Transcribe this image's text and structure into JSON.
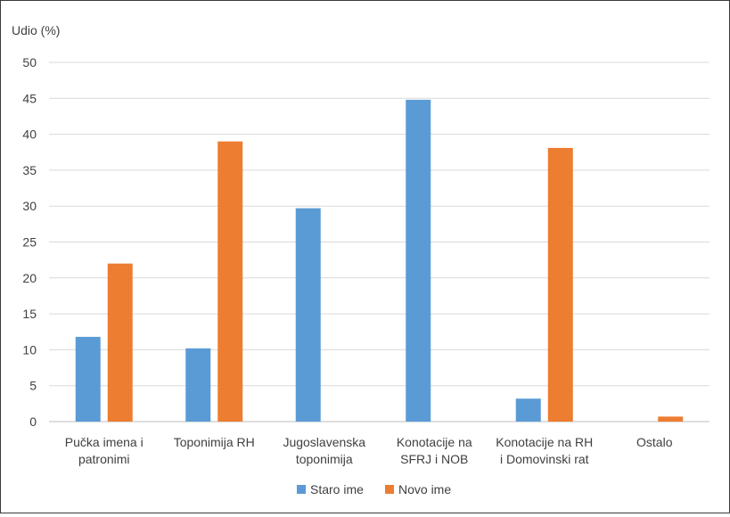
{
  "chart_data": {
    "type": "bar",
    "ylabel": "Udio (%)",
    "ylim": [
      0,
      50
    ],
    "yticks": [
      0,
      5,
      10,
      15,
      20,
      25,
      30,
      35,
      40,
      45,
      50
    ],
    "grid": true,
    "legend_position": "bottom",
    "categories": [
      [
        "Pučka imena i",
        "patronimi"
      ],
      [
        "Toponimija RH"
      ],
      [
        "Jugoslavenska",
        "toponimija"
      ],
      [
        "Konotacije na",
        "SFRJ i NOB"
      ],
      [
        "Konotacije na RH",
        "i Domovinski rat"
      ],
      [
        "Ostalo"
      ]
    ],
    "series": [
      {
        "name": "Staro ime",
        "color": "#5b9bd5",
        "values": [
          11.8,
          10.2,
          29.7,
          44.8,
          3.2,
          0
        ]
      },
      {
        "name": "Novo ime",
        "color": "#ed7d31",
        "values": [
          22.0,
          39.0,
          0,
          0,
          38.1,
          0.7
        ]
      }
    ]
  }
}
